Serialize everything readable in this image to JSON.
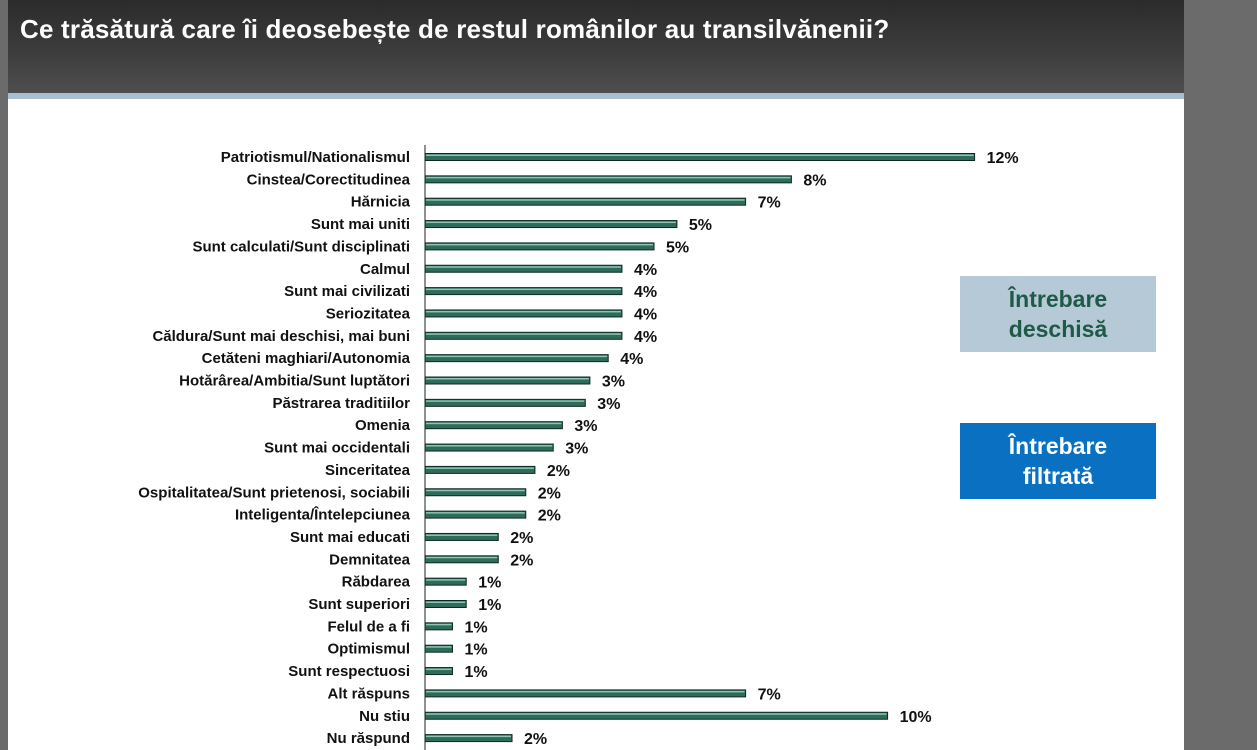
{
  "title": "Ce trăsătură care îi deosebește de restul românilor au transilvănenii?",
  "notes": {
    "open_question": [
      "Întrebare",
      "deschisă"
    ],
    "filtered_question": [
      "Întrebare",
      "filtrată"
    ]
  },
  "colors": {
    "bar": "#2e6b5a",
    "title_bar": "#3a3a3a",
    "open_box": "#b5cad6",
    "filtered_box": "#0a71c2"
  },
  "chart_data": {
    "type": "bar",
    "orientation": "horizontal",
    "title": "",
    "xlabel": "",
    "ylabel": "",
    "xlim": [
      0,
      12
    ],
    "grid": false,
    "categories": [
      "Patriotismul/Nationalismul",
      "Cinstea/Corectitudinea",
      "Hărnicia",
      "Sunt mai uniti",
      "Sunt calculati/Sunt disciplinati",
      "Calmul",
      "Sunt mai civilizati",
      "Seriozitatea",
      "Căldura/Sunt mai deschisi, mai buni",
      "Cetăteni maghiari/Autonomia",
      "Hotărârea/Ambitia/Sunt luptători",
      "Păstrarea traditiilor",
      "Omenia",
      "Sunt mai occidentali",
      "Sinceritatea",
      "Ospitalitatea/Sunt prietenosi, sociabili",
      "Inteligenta/Întelepciunea",
      "Sunt mai educati",
      "Demnitatea",
      "Răbdarea",
      "Sunt superiori",
      "Felul de a fi",
      "Optimismul",
      "Sunt respectuosi",
      "Alt răspuns",
      "Nu stiu",
      "Nu răspund"
    ],
    "values": [
      12.0,
      8.0,
      7.0,
      5.5,
      5.0,
      4.3,
      4.3,
      4.3,
      4.3,
      4.0,
      3.6,
      3.5,
      3.0,
      2.8,
      2.4,
      2.2,
      2.2,
      1.6,
      1.6,
      0.9,
      0.9,
      0.6,
      0.6,
      0.6,
      7.0,
      10.1,
      1.9
    ],
    "value_labels": [
      "12%",
      "8%",
      "7%",
      "5%",
      "5%",
      "4%",
      "4%",
      "4%",
      "4%",
      "4%",
      "3%",
      "3%",
      "3%",
      "3%",
      "2%",
      "2%",
      "2%",
      "2%",
      "2%",
      "1%",
      "1%",
      "1%",
      "1%",
      "1%",
      "7%",
      "10%",
      "2%"
    ]
  }
}
